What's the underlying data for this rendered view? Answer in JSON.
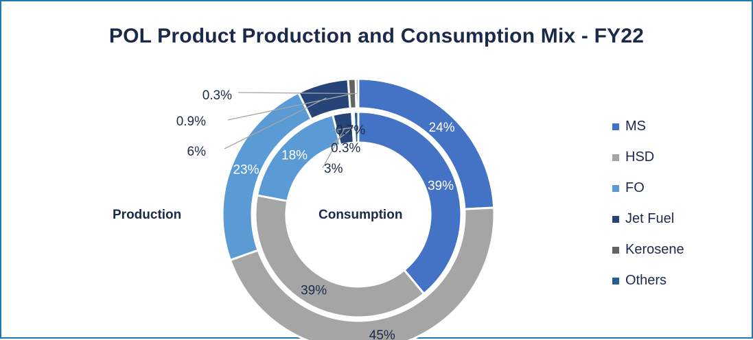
{
  "chart_data": {
    "type": "pie",
    "title": "POL Product Production and Consumption Mix - FY22",
    "categories": [
      "MS",
      "HSD",
      "FO",
      "Jet Fuel",
      "Kerosene",
      "Others"
    ],
    "colors": [
      "#4472C4",
      "#A5A5A5",
      "#5B9BD5",
      "#264478",
      "#636363",
      "#255E91"
    ],
    "legend_position": "right",
    "series": [
      {
        "name": "Production",
        "ring": "outer",
        "values": [
          24,
          45,
          23,
          6,
          0.9,
          0.3
        ],
        "labels": [
          "24%",
          "45%",
          "23%",
          "6%",
          "0.9%",
          "0.3%"
        ]
      },
      {
        "name": "Consumption",
        "ring": "inner",
        "values": [
          39,
          39,
          18,
          3,
          0.3,
          0.7
        ],
        "labels": [
          "39%",
          "39%",
          "18%",
          "3%",
          "0.3%",
          "0.7%"
        ]
      }
    ]
  }
}
